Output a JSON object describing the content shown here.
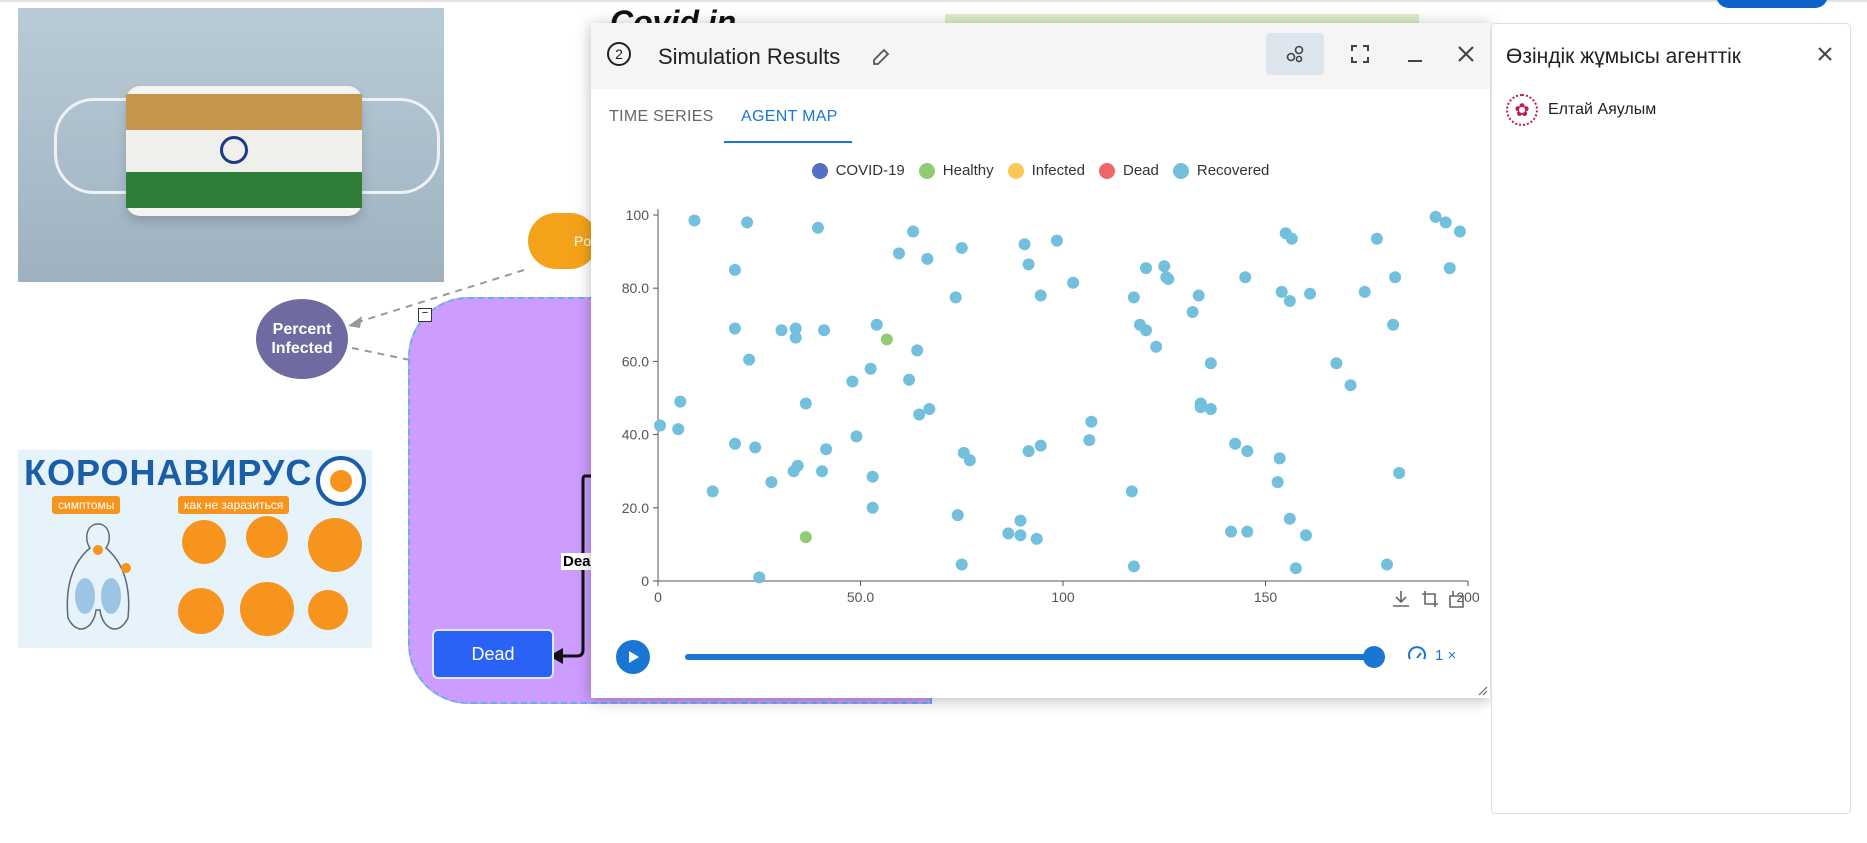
{
  "canvas": {
    "percent_infected_label": "Percent Infected",
    "cloud_label": "Po",
    "dead_node_label": "Dead",
    "dead_edge_label": "Dea",
    "covid_title": "Covid in",
    "corona_poster": {
      "title": "КОРОНАВИРУС",
      "symptoms_tag": "симптомы",
      "prevention_tag": "как не заразиться"
    }
  },
  "modal": {
    "step_number": "2",
    "title": "Simulation Results",
    "tabs": [
      {
        "label": "TIME SERIES",
        "active": false
      },
      {
        "label": "AGENT MAP",
        "active": true
      }
    ],
    "speed_label": "1 ×"
  },
  "right_panel": {
    "title": "Өзіндік жұмысы агенттік",
    "user_name": "Елтай Аяулым"
  },
  "colors": {
    "accent": "#1976d2",
    "covid": "#5470c6",
    "healthy": "#91cc75",
    "infected": "#fac858",
    "dead": "#ee6666",
    "recovered": "#73c0de"
  },
  "chart_data": {
    "type": "scatter",
    "xlim": [
      0,
      200
    ],
    "ylim": [
      0,
      100
    ],
    "x_ticks": [
      "0",
      "50.0",
      "100",
      "150",
      "200"
    ],
    "y_ticks": [
      "0",
      "20.0",
      "40.0",
      "60.0",
      "80.0",
      "100"
    ],
    "legend_position": "top-center",
    "grid": false,
    "series": [
      {
        "name": "COVID-19",
        "color": "#5470c6",
        "points": []
      },
      {
        "name": "Healthy",
        "color": "#91cc75",
        "points": [
          [
            56.5,
            66
          ],
          [
            36.5,
            12
          ]
        ]
      },
      {
        "name": "Infected",
        "color": "#fac858",
        "points": []
      },
      {
        "name": "Dead",
        "color": "#ee6666",
        "points": []
      },
      {
        "name": "Recovered",
        "color": "#73c0de",
        "points": [
          [
            9,
            98.5
          ],
          [
            22,
            98
          ],
          [
            39.5,
            96.5
          ],
          [
            19,
            85
          ],
          [
            19,
            69
          ],
          [
            22.5,
            60.5
          ],
          [
            0.5,
            42.5
          ],
          [
            5,
            41.5
          ],
          [
            5.5,
            49
          ],
          [
            13.5,
            24.5
          ],
          [
            19,
            37.5
          ],
          [
            24,
            36.5
          ],
          [
            25,
            1
          ],
          [
            28,
            27
          ],
          [
            30.5,
            68.5
          ],
          [
            34,
            69
          ],
          [
            34,
            66.5
          ],
          [
            33.5,
            30
          ],
          [
            34.5,
            31.5
          ],
          [
            36.5,
            48.5
          ],
          [
            41,
            68.5
          ],
          [
            41.5,
            36
          ],
          [
            40.5,
            30
          ],
          [
            48,
            54.5
          ],
          [
            49,
            39.5
          ],
          [
            52.5,
            58
          ],
          [
            53,
            28.5
          ],
          [
            53,
            20
          ],
          [
            54,
            70
          ],
          [
            59.5,
            89.5
          ],
          [
            62,
            55
          ],
          [
            63,
            95.5
          ],
          [
            64,
            63
          ],
          [
            64.5,
            45.5
          ],
          [
            67,
            47
          ],
          [
            66.5,
            88
          ],
          [
            73.5,
            77.5
          ],
          [
            75,
            91
          ],
          [
            75.5,
            35
          ],
          [
            77,
            33
          ],
          [
            74,
            18
          ],
          [
            75,
            4.5
          ],
          [
            86.5,
            13
          ],
          [
            89.5,
            16.5
          ],
          [
            89.5,
            12.5
          ],
          [
            93.5,
            11.5
          ],
          [
            90.5,
            92
          ],
          [
            91.5,
            86.5
          ],
          [
            94.5,
            78
          ],
          [
            91.5,
            35.5
          ],
          [
            94.5,
            37
          ],
          [
            98.5,
            93
          ],
          [
            102.5,
            81.5
          ],
          [
            106.5,
            38.5
          ],
          [
            107,
            43.5
          ],
          [
            117,
            24.5
          ],
          [
            117.5,
            4
          ],
          [
            117.5,
            77.5
          ],
          [
            119,
            70
          ],
          [
            120.5,
            68.5
          ],
          [
            120.5,
            85.5
          ],
          [
            123,
            64
          ],
          [
            125,
            86
          ],
          [
            125.5,
            83
          ],
          [
            126,
            82.5
          ],
          [
            132,
            73.5
          ],
          [
            133.5,
            78
          ],
          [
            134,
            47.5
          ],
          [
            134,
            48.5
          ],
          [
            136.5,
            47
          ],
          [
            136.5,
            59.5
          ],
          [
            141.5,
            13.5
          ],
          [
            142.5,
            37.5
          ],
          [
            145.5,
            35.5
          ],
          [
            145.5,
            13.5
          ],
          [
            145,
            83
          ],
          [
            153,
            27
          ],
          [
            153.5,
            33.5
          ],
          [
            154,
            79
          ],
          [
            155,
            95
          ],
          [
            156,
            76.5
          ],
          [
            156.5,
            93.5
          ],
          [
            156,
            17
          ],
          [
            157.5,
            3.5
          ],
          [
            160,
            12.5
          ],
          [
            161,
            78.5
          ],
          [
            167.5,
            59.5
          ],
          [
            171,
            53.5
          ],
          [
            174.5,
            79
          ],
          [
            177.5,
            93.5
          ],
          [
            180,
            4.5
          ],
          [
            181.5,
            70
          ],
          [
            182,
            83
          ],
          [
            183,
            29.5
          ],
          [
            192,
            99.5
          ],
          [
            194.5,
            98
          ],
          [
            195.5,
            85.5
          ],
          [
            198,
            95.5
          ]
        ]
      }
    ]
  }
}
